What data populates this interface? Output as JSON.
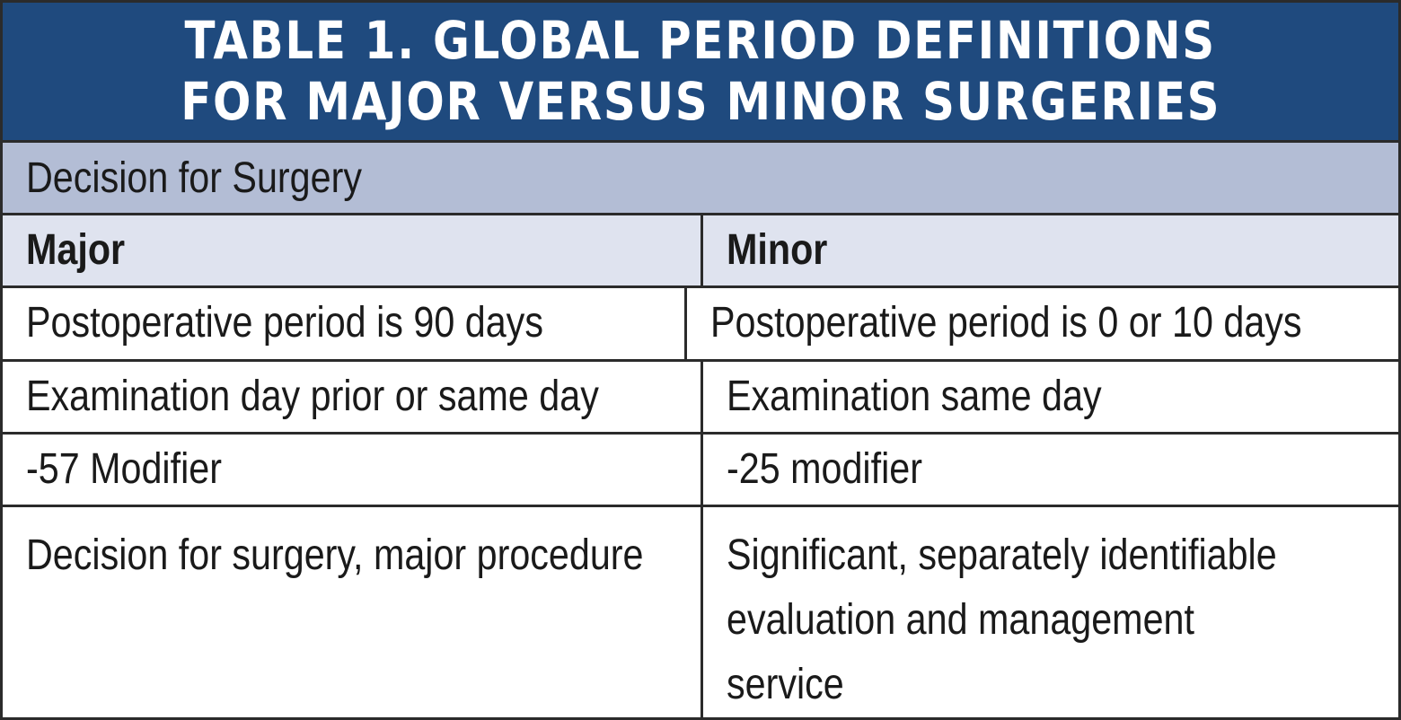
{
  "title": {
    "line1": "TABLE 1. GLOBAL PERIOD DEFINITIONS",
    "line2": "FOR MAJOR VERSUS MINOR SURGERIES"
  },
  "section": "Decision for Surgery",
  "columns": [
    "Major",
    "Minor"
  ],
  "rows": [
    [
      "Postoperative period is 90 days",
      "Postoperative period is 0 or 10 days"
    ],
    [
      "Examination day prior or same day",
      "Examination same day"
    ],
    [
      "-57 Modifier",
      "-25 modifier"
    ],
    [
      "Decision for surgery, major procedure",
      "Significant, separately identifiable\nevaluation and management service"
    ]
  ],
  "colors": {
    "title_bg": "#1f4a7e",
    "section_bg": "#b3bdd5",
    "header_bg": "#dfe3ef"
  }
}
